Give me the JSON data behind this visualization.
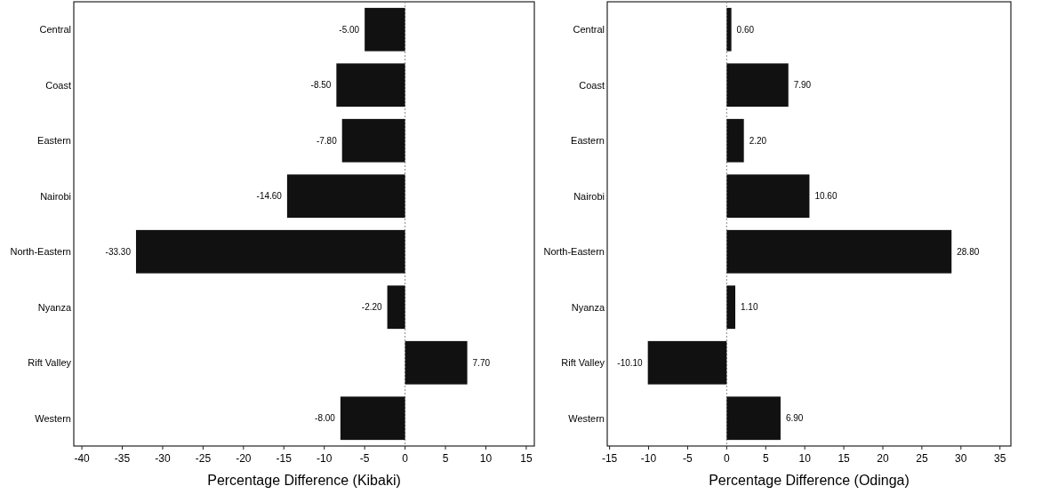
{
  "chart_data": [
    {
      "type": "bar",
      "orientation": "horizontal",
      "xlabel": "Percentage Difference (Kibaki)",
      "categories": [
        "Central",
        "Coast",
        "Eastern",
        "Nairobi",
        "North-Eastern",
        "Nyanza",
        "Rift Valley",
        "Western"
      ],
      "values": [
        -5.0,
        -8.5,
        -7.8,
        -14.6,
        -33.3,
        -2.2,
        7.7,
        -8.0
      ],
      "value_labels": [
        "-5.00",
        "-8.50",
        "-7.80",
        "-14.60",
        "-33.30",
        "-2.20",
        "7.70",
        "-8.00"
      ],
      "color": "#111111",
      "xlim": [
        -41,
        16
      ],
      "xticks": [
        -40,
        -35,
        -30,
        -25,
        -20,
        -15,
        -10,
        -5,
        0,
        5,
        10,
        15
      ],
      "ref_lines": [
        {
          "axis": "x",
          "value": 0,
          "color": "#888888",
          "line_style": "dotted"
        }
      ]
    },
    {
      "type": "bar",
      "orientation": "horizontal",
      "xlabel": "Percentage Difference (Odinga)",
      "categories": [
        "Central",
        "Coast",
        "Eastern",
        "Nairobi",
        "North-Eastern",
        "Nyanza",
        "Rift Valley",
        "Western"
      ],
      "values": [
        0.6,
        7.9,
        2.2,
        10.6,
        28.8,
        1.1,
        -10.1,
        6.9
      ],
      "value_labels": [
        "0.60",
        "7.90",
        "2.20",
        "10.60",
        "28.80",
        "1.10",
        "-10.10",
        "6.90"
      ],
      "color": "#111111",
      "xlim": [
        -15.3,
        36.4
      ],
      "xticks": [
        -15,
        -10,
        -5,
        0,
        5,
        10,
        15,
        20,
        25,
        30,
        35
      ],
      "ref_lines": [
        {
          "axis": "x",
          "value": 0,
          "color": "#888888",
          "line_style": "dotted"
        }
      ]
    }
  ]
}
